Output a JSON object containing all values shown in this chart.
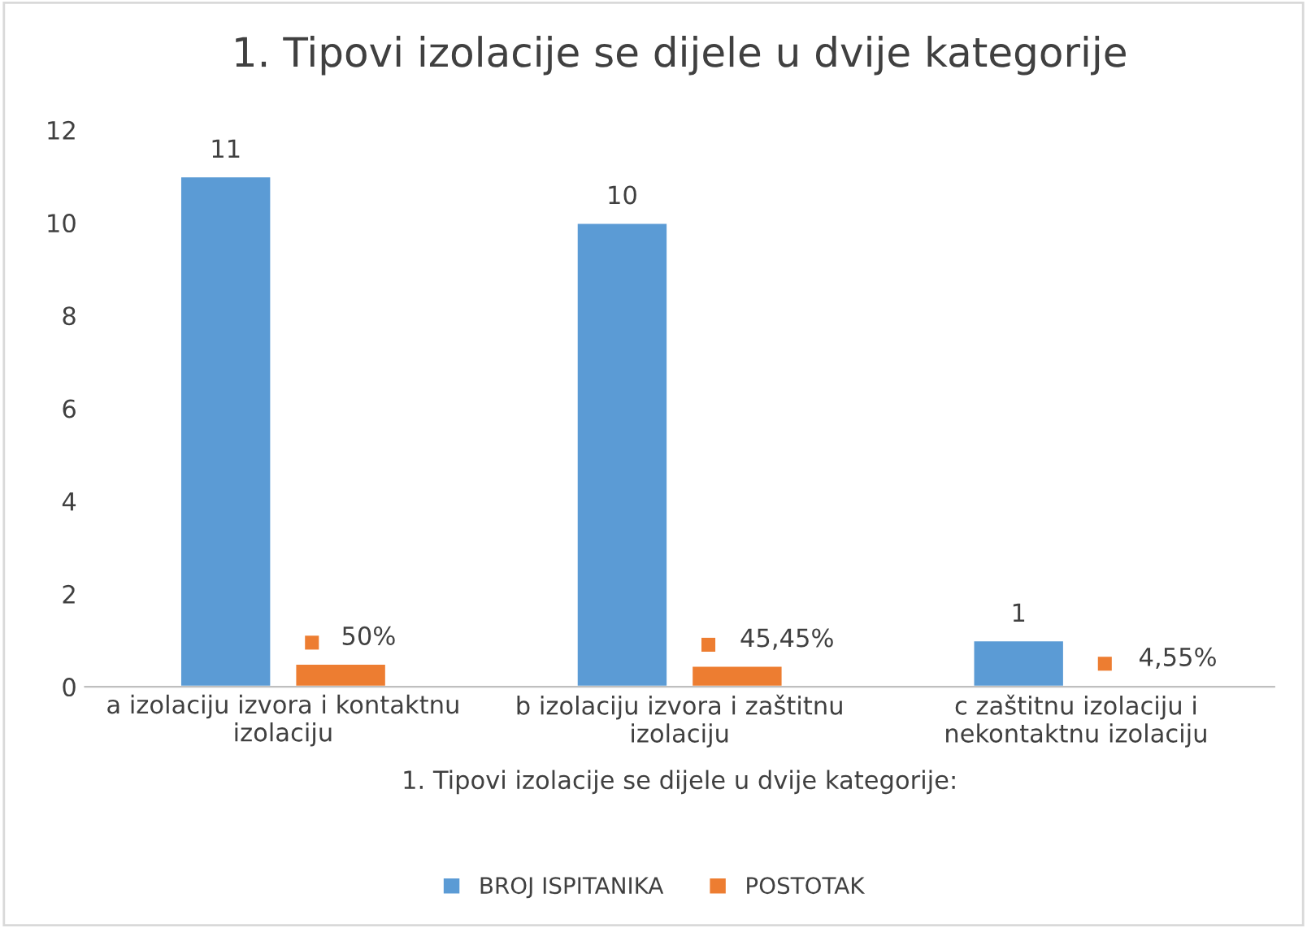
{
  "chart_data": {
    "type": "bar",
    "title": "1. Tipovi izolacije se dijele u dvije kategorije",
    "xlabel": "1. Tipovi izolacije se dijele u dvije kategorije:",
    "categories": [
      "a izolaciju izvora i kontaktnu izolaciju",
      "b izolaciju izvora i zaštitnu izolaciju",
      "c zaštitnu izolaciju i nekontaktnu izolaciju"
    ],
    "series": [
      {
        "name": "BROJ ISPITANIKA",
        "color": "#5b9bd5",
        "values": [
          11,
          10,
          1
        ],
        "value_labels": [
          "11",
          "10",
          "1"
        ]
      },
      {
        "name": "POSTOTAK",
        "color": "#ed7d31",
        "values": [
          0.5,
          0.4545,
          0.0455
        ],
        "value_labels": [
          "50%",
          "45,45%",
          "4,55%"
        ]
      }
    ],
    "ylim": [
      0,
      12
    ],
    "yticks": [
      0,
      2,
      4,
      6,
      8,
      10,
      12
    ],
    "grid": false,
    "legend": "bottom"
  }
}
